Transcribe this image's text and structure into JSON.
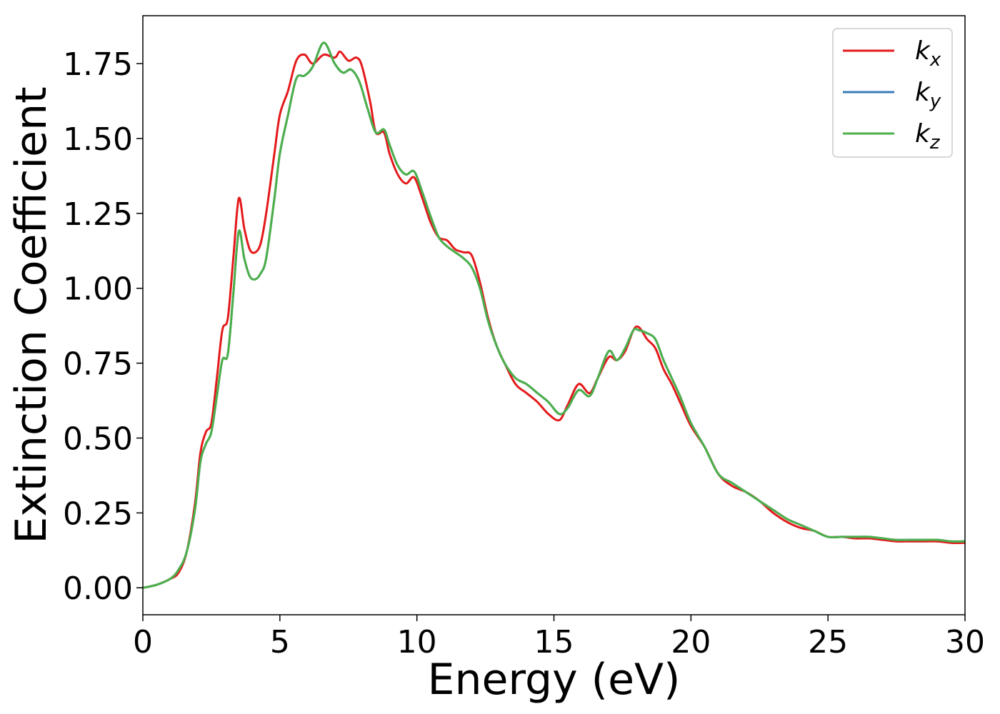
{
  "chart_data": {
    "type": "line",
    "title": "",
    "xlabel": "Energy (eV)",
    "ylabel": "Extinction Coefficient",
    "xlim": [
      0,
      30
    ],
    "ylim": [
      -0.09,
      1.91
    ],
    "xticks": [
      0,
      5,
      10,
      15,
      20,
      25,
      30
    ],
    "xtick_labels": [
      "0",
      "5",
      "10",
      "15",
      "20",
      "25",
      "30"
    ],
    "yticks": [
      0.0,
      0.25,
      0.5,
      0.75,
      1.0,
      1.25,
      1.5,
      1.75
    ],
    "ytick_labels": [
      "0.00",
      "0.25",
      "0.50",
      "0.75",
      "1.00",
      "1.25",
      "1.50",
      "1.75"
    ],
    "grid": false,
    "legend_position": "top-right",
    "series": [
      {
        "name": "k_x",
        "label_base": "k",
        "label_sub": "x",
        "color": "#e41a1c",
        "x": [
          0,
          0.5,
          1.0,
          1.3,
          1.6,
          1.9,
          2.1,
          2.3,
          2.5,
          2.7,
          2.9,
          3.1,
          3.3,
          3.5,
          3.7,
          3.9,
          4.1,
          4.3,
          4.5,
          4.8,
          5.0,
          5.3,
          5.6,
          5.9,
          6.2,
          6.6,
          7.0,
          7.2,
          7.5,
          7.8,
          8.0,
          8.3,
          8.5,
          8.8,
          9.0,
          9.3,
          9.6,
          9.9,
          10.2,
          10.5,
          10.8,
          11.1,
          11.4,
          11.7,
          12.0,
          12.3,
          12.6,
          12.9,
          13.2,
          13.6,
          14.0,
          14.4,
          14.8,
          15.2,
          15.5,
          15.9,
          16.3,
          16.6,
          17.0,
          17.3,
          17.6,
          17.9,
          18.1,
          18.4,
          18.7,
          19.0,
          19.3,
          19.6,
          20.0,
          20.5,
          21.0,
          21.5,
          22.0,
          22.5,
          23.0,
          23.5,
          24.0,
          24.5,
          25.0,
          25.5,
          26.0,
          26.5,
          27.0,
          27.5,
          28.0,
          28.5,
          29.0,
          29.5,
          30.0
        ],
        "y": [
          0.0,
          0.01,
          0.03,
          0.05,
          0.12,
          0.28,
          0.45,
          0.52,
          0.55,
          0.7,
          0.86,
          0.9,
          1.1,
          1.3,
          1.2,
          1.13,
          1.12,
          1.15,
          1.25,
          1.45,
          1.58,
          1.66,
          1.76,
          1.78,
          1.75,
          1.78,
          1.77,
          1.79,
          1.76,
          1.77,
          1.74,
          1.62,
          1.52,
          1.52,
          1.45,
          1.38,
          1.35,
          1.37,
          1.3,
          1.22,
          1.17,
          1.16,
          1.13,
          1.12,
          1.11,
          1.02,
          0.9,
          0.81,
          0.75,
          0.68,
          0.65,
          0.62,
          0.58,
          0.56,
          0.61,
          0.68,
          0.65,
          0.7,
          0.77,
          0.76,
          0.79,
          0.86,
          0.87,
          0.83,
          0.8,
          0.73,
          0.68,
          0.62,
          0.54,
          0.47,
          0.38,
          0.34,
          0.32,
          0.29,
          0.25,
          0.22,
          0.2,
          0.19,
          0.17,
          0.17,
          0.165,
          0.165,
          0.16,
          0.155,
          0.155,
          0.155,
          0.155,
          0.15,
          0.15
        ]
      },
      {
        "name": "k_y",
        "label_base": "k",
        "label_sub": "y",
        "color": "#377eb8",
        "x": [
          0,
          0.5,
          1.0,
          1.3,
          1.6,
          1.9,
          2.1,
          2.3,
          2.5,
          2.7,
          2.9,
          3.1,
          3.3,
          3.5,
          3.7,
          3.9,
          4.1,
          4.3,
          4.5,
          4.8,
          5.0,
          5.3,
          5.6,
          5.9,
          6.2,
          6.6,
          7.0,
          7.3,
          7.6,
          7.9,
          8.2,
          8.5,
          8.8,
          9.0,
          9.3,
          9.6,
          9.9,
          10.2,
          10.5,
          10.8,
          11.1,
          11.4,
          11.7,
          12.0,
          12.3,
          12.6,
          12.9,
          13.2,
          13.6,
          14.0,
          14.4,
          14.8,
          15.2,
          15.5,
          15.9,
          16.3,
          16.6,
          17.0,
          17.3,
          17.6,
          17.9,
          18.1,
          18.4,
          18.7,
          19.0,
          19.3,
          19.6,
          20.0,
          20.5,
          21.0,
          21.5,
          22.0,
          22.5,
          23.0,
          23.5,
          24.0,
          24.5,
          25.0,
          25.5,
          26.0,
          26.5,
          27.0,
          27.5,
          28.0,
          28.5,
          29.0,
          29.5,
          30.0
        ],
        "y": [
          0.0,
          0.01,
          0.03,
          0.06,
          0.12,
          0.26,
          0.42,
          0.48,
          0.52,
          0.64,
          0.76,
          0.78,
          0.98,
          1.19,
          1.1,
          1.04,
          1.03,
          1.05,
          1.1,
          1.3,
          1.45,
          1.58,
          1.7,
          1.71,
          1.74,
          1.82,
          1.75,
          1.72,
          1.73,
          1.69,
          1.6,
          1.52,
          1.53,
          1.48,
          1.41,
          1.38,
          1.39,
          1.32,
          1.24,
          1.17,
          1.14,
          1.12,
          1.1,
          1.07,
          1.0,
          0.89,
          0.81,
          0.75,
          0.7,
          0.68,
          0.65,
          0.62,
          0.58,
          0.6,
          0.66,
          0.64,
          0.7,
          0.79,
          0.76,
          0.8,
          0.86,
          0.86,
          0.85,
          0.83,
          0.76,
          0.7,
          0.64,
          0.55,
          0.47,
          0.38,
          0.35,
          0.32,
          0.29,
          0.26,
          0.23,
          0.21,
          0.19,
          0.17,
          0.17,
          0.17,
          0.17,
          0.165,
          0.16,
          0.16,
          0.16,
          0.16,
          0.155,
          0.155
        ]
      },
      {
        "name": "k_z",
        "label_base": "k",
        "label_sub": "z",
        "color": "#4daf4a",
        "x": [
          0,
          0.5,
          1.0,
          1.3,
          1.6,
          1.9,
          2.1,
          2.3,
          2.5,
          2.7,
          2.9,
          3.1,
          3.3,
          3.5,
          3.7,
          3.9,
          4.1,
          4.3,
          4.5,
          4.8,
          5.0,
          5.3,
          5.6,
          5.9,
          6.2,
          6.6,
          7.0,
          7.3,
          7.6,
          7.9,
          8.2,
          8.5,
          8.8,
          9.0,
          9.3,
          9.6,
          9.9,
          10.2,
          10.5,
          10.8,
          11.1,
          11.4,
          11.7,
          12.0,
          12.3,
          12.6,
          12.9,
          13.2,
          13.6,
          14.0,
          14.4,
          14.8,
          15.2,
          15.5,
          15.9,
          16.3,
          16.6,
          17.0,
          17.3,
          17.6,
          17.9,
          18.1,
          18.4,
          18.7,
          19.0,
          19.3,
          19.6,
          20.0,
          20.5,
          21.0,
          21.5,
          22.0,
          22.5,
          23.0,
          23.5,
          24.0,
          24.5,
          25.0,
          25.5,
          26.0,
          26.5,
          27.0,
          27.5,
          28.0,
          28.5,
          29.0,
          29.5,
          30.0
        ],
        "y": [
          0.0,
          0.01,
          0.03,
          0.06,
          0.12,
          0.26,
          0.42,
          0.48,
          0.52,
          0.64,
          0.76,
          0.78,
          0.98,
          1.19,
          1.1,
          1.04,
          1.03,
          1.05,
          1.1,
          1.3,
          1.45,
          1.58,
          1.7,
          1.71,
          1.74,
          1.82,
          1.75,
          1.72,
          1.73,
          1.69,
          1.6,
          1.52,
          1.53,
          1.48,
          1.41,
          1.38,
          1.39,
          1.32,
          1.24,
          1.17,
          1.14,
          1.12,
          1.1,
          1.07,
          1.0,
          0.89,
          0.81,
          0.75,
          0.7,
          0.68,
          0.65,
          0.62,
          0.58,
          0.6,
          0.66,
          0.64,
          0.7,
          0.79,
          0.76,
          0.8,
          0.86,
          0.86,
          0.85,
          0.83,
          0.76,
          0.7,
          0.64,
          0.55,
          0.47,
          0.38,
          0.35,
          0.32,
          0.29,
          0.26,
          0.23,
          0.21,
          0.19,
          0.17,
          0.17,
          0.17,
          0.17,
          0.165,
          0.16,
          0.16,
          0.16,
          0.16,
          0.155,
          0.155
        ]
      }
    ]
  }
}
